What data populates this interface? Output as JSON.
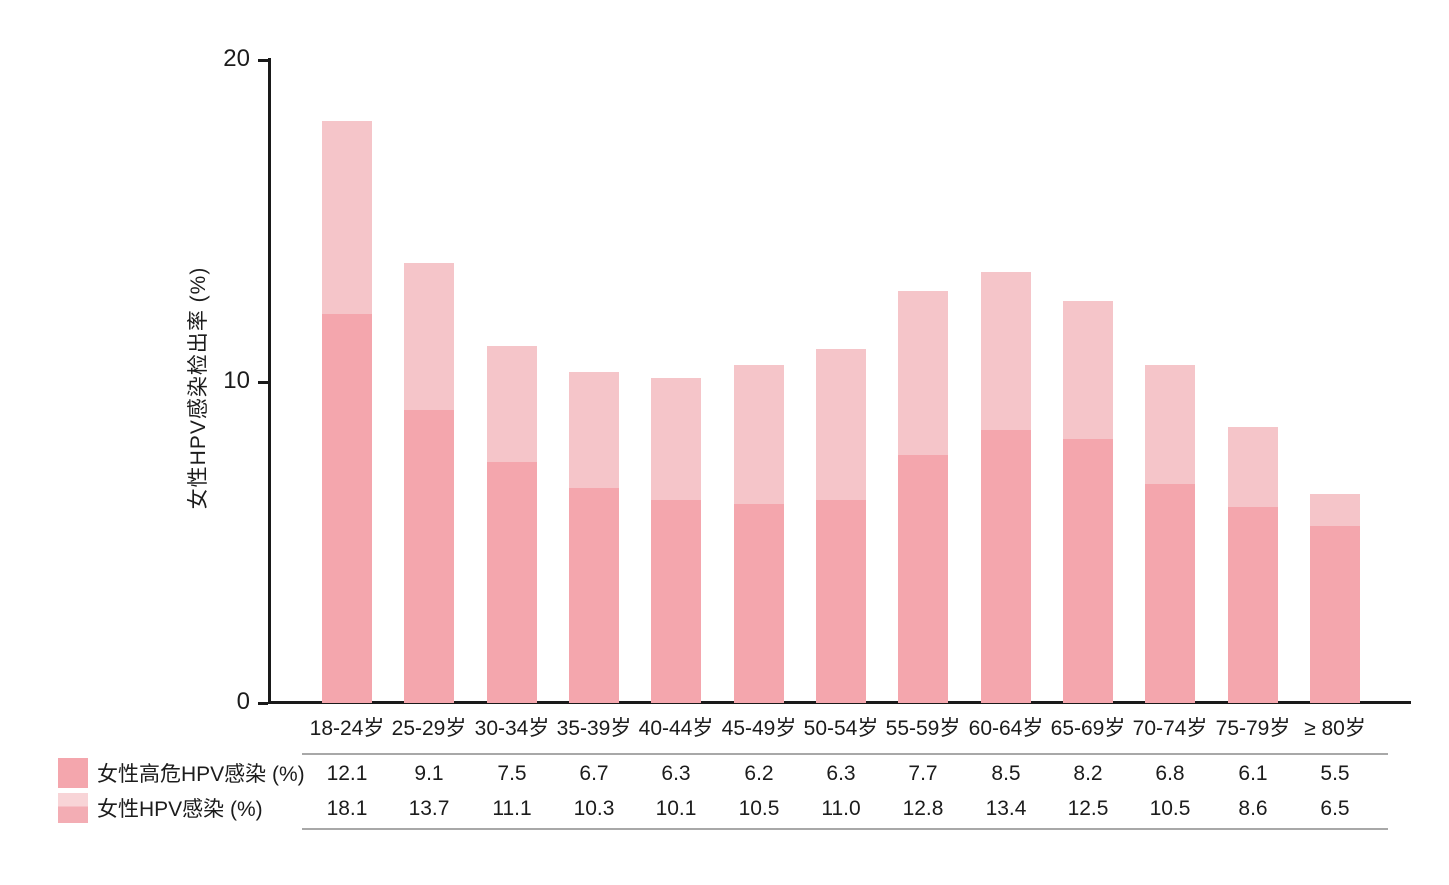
{
  "chart_data": {
    "type": "bar",
    "variant": "stacked-overlay",
    "title": "",
    "categories": [
      "18-24岁",
      "25-29岁",
      "30-34岁",
      "35-39岁",
      "40-44岁",
      "45-49岁",
      "50-54岁",
      "55-59岁",
      "60-64岁",
      "65-69岁",
      "70-74岁",
      "75-79岁",
      "≥ 80岁"
    ],
    "series": [
      {
        "name": "女性高危HPV感染 (%)",
        "values": [
          12.1,
          9.1,
          7.5,
          6.7,
          6.3,
          6.2,
          6.3,
          7.7,
          8.5,
          8.2,
          6.8,
          6.1,
          5.5
        ],
        "labels": [
          "12.1",
          "9.1",
          "7.5",
          "6.7",
          "6.3",
          "6.2",
          "6.3",
          "7.7",
          "8.5",
          "8.2",
          "6.8",
          "6.1",
          "5.5"
        ]
      },
      {
        "name": "女性HPV感染 (%)",
        "values": [
          18.1,
          13.7,
          11.1,
          10.3,
          10.1,
          10.5,
          11.0,
          12.8,
          13.4,
          12.5,
          10.5,
          8.6,
          6.5
        ],
        "labels": [
          "18.1",
          "13.7",
          "11.1",
          "10.3",
          "10.1",
          "10.5",
          "11.0",
          "12.8",
          "13.4",
          "12.5",
          "10.5",
          "8.6",
          "6.5"
        ]
      }
    ],
    "ylabel": "女性HPV感染检出率 (%)",
    "xlabel": "",
    "ylim": [
      0,
      20
    ],
    "yticks": [
      0,
      10,
      20
    ],
    "grid": false,
    "legend_position": "bottom-left-table"
  },
  "colors": {
    "bar_dark": "#f4a6ad",
    "bar_light": "#f5c5c9",
    "legend_swatch2_top": "#f8d4d7",
    "legend_swatch2_bottom": "#f3adb4",
    "axis": "#1a1a1a",
    "table_rule": "#a8a8a8",
    "text": "#1c1c1c"
  }
}
